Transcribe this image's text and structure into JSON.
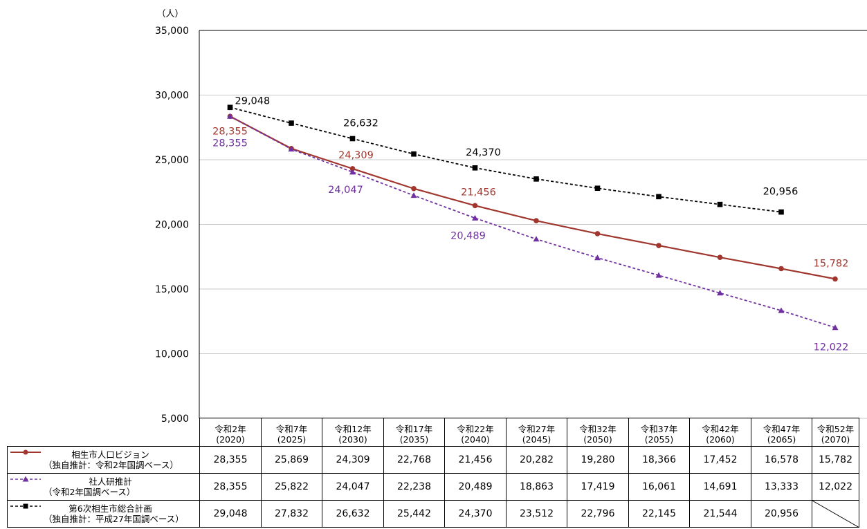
{
  "chart_data": {
    "type": "line",
    "unit_label": "（人）",
    "ylim": [
      5000,
      35000
    ],
    "yticks": [
      "5,000",
      "10,000",
      "15,000",
      "20,000",
      "25,000",
      "30,000",
      "35,000"
    ],
    "ytick_values": [
      5000,
      10000,
      15000,
      20000,
      25000,
      30000,
      35000
    ],
    "grid": true,
    "categories": [
      {
        "line1": "令和2年",
        "line2": "(2020)"
      },
      {
        "line1": "令和7年",
        "line2": "(2025)"
      },
      {
        "line1": "令和12年",
        "line2": "(2030)"
      },
      {
        "line1": "令和17年",
        "line2": "(2035)"
      },
      {
        "line1": "令和22年",
        "line2": "(2040)"
      },
      {
        "line1": "令和27年",
        "line2": "(2045)"
      },
      {
        "line1": "令和32年",
        "line2": "(2050)"
      },
      {
        "line1": "令和37年",
        "line2": "(2055)"
      },
      {
        "line1": "令和42年",
        "line2": "(2060)"
      },
      {
        "line1": "令和47年",
        "line2": "(2065)"
      },
      {
        "line1": "令和52年",
        "line2": "(2070)"
      }
    ],
    "series": [
      {
        "name_line1": "相生市人口ビジョン",
        "name_line2": "（独自推計：令和2年国調ベース）",
        "color": "#a0362d",
        "dashed": false,
        "marker": "circle",
        "values": [
          28355,
          25869,
          24309,
          22768,
          21456,
          20282,
          19280,
          18366,
          17452,
          16578,
          15782
        ],
        "display": [
          "28,355",
          "25,869",
          "24,309",
          "22,768",
          "21,456",
          "20,282",
          "19,280",
          "18,366",
          "17,452",
          "16,578",
          "15,782"
        ],
        "label_points": [
          0,
          2,
          4,
          10
        ]
      },
      {
        "name_line1": "社人研推計",
        "name_line2": "（令和2年国調ベース）",
        "color": "#7030a0",
        "dashed": true,
        "marker": "triangle",
        "values": [
          28355,
          25822,
          24047,
          22238,
          20489,
          18863,
          17419,
          16061,
          14691,
          13333,
          12022
        ],
        "display": [
          "28,355",
          "25,822",
          "24,047",
          "22,238",
          "20,489",
          "18,863",
          "17,419",
          "16,061",
          "14,691",
          "13,333",
          "12,022"
        ],
        "label_points": [
          0,
          2,
          4,
          10
        ]
      },
      {
        "name_line1": "第6次相生市総合計画",
        "name_line2": "（独自推計：平成27年国調ベース）",
        "color": "#000000",
        "dashed": true,
        "marker": "square",
        "values": [
          29048,
          27832,
          26632,
          25442,
          24370,
          23512,
          22796,
          22145,
          21544,
          20956,
          null
        ],
        "display": [
          "29,048",
          "27,832",
          "26,632",
          "25,442",
          "24,370",
          "23,512",
          "22,796",
          "22,145",
          "21,544",
          "20,956",
          ""
        ],
        "label_points": [
          0,
          2,
          4,
          9
        ]
      }
    ]
  }
}
